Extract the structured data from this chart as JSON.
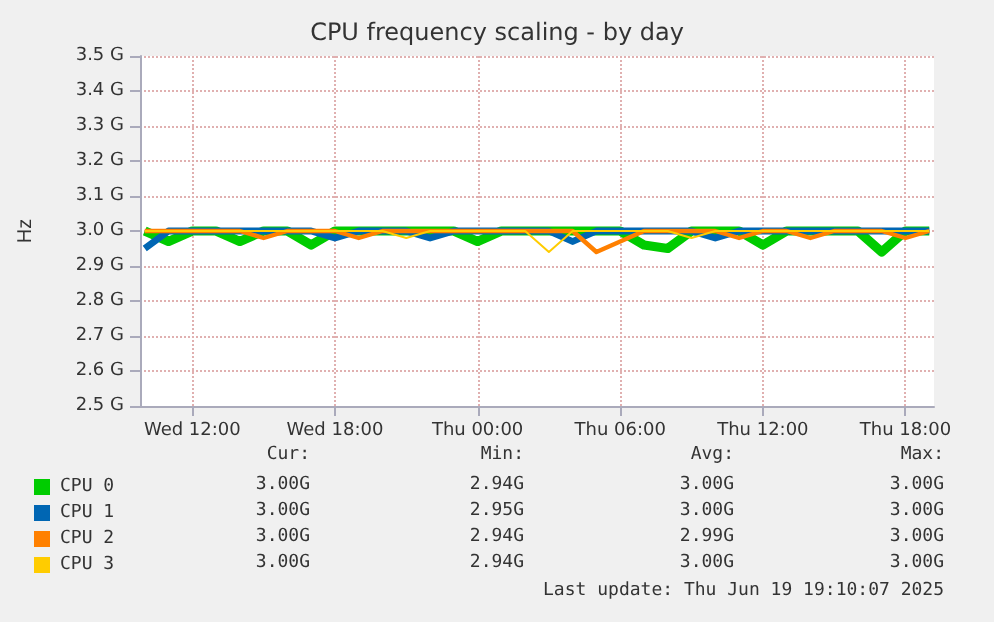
{
  "chart_data": {
    "type": "line",
    "title": "CPU frequency scaling - by day",
    "ylabel": "Hz",
    "x": [
      "2025-06-18T10:00",
      "2025-06-18T11:00",
      "2025-06-18T12:00",
      "2025-06-18T13:00",
      "2025-06-18T14:00",
      "2025-06-18T15:00",
      "2025-06-18T16:00",
      "2025-06-18T17:00",
      "2025-06-18T18:00",
      "2025-06-18T19:00",
      "2025-06-18T20:00",
      "2025-06-18T21:00",
      "2025-06-18T22:00",
      "2025-06-18T23:00",
      "2025-06-19T00:00",
      "2025-06-19T01:00",
      "2025-06-19T02:00",
      "2025-06-19T03:00",
      "2025-06-19T04:00",
      "2025-06-19T05:00",
      "2025-06-19T06:00",
      "2025-06-19T07:00",
      "2025-06-19T08:00",
      "2025-06-19T09:00",
      "2025-06-19T10:00",
      "2025-06-19T11:00",
      "2025-06-19T12:00",
      "2025-06-19T13:00",
      "2025-06-19T14:00",
      "2025-06-19T15:00",
      "2025-06-19T16:00",
      "2025-06-19T17:00",
      "2025-06-19T18:00",
      "2025-06-19T19:00"
    ],
    "series": [
      {
        "name": "CPU 0",
        "color": "#00cc00",
        "values": [
          3.0,
          2.97,
          3.0,
          3.0,
          2.97,
          3.0,
          3.0,
          2.96,
          3.0,
          3.0,
          3.0,
          3.0,
          3.0,
          3.0,
          2.97,
          3.0,
          3.0,
          3.0,
          3.0,
          3.0,
          3.0,
          2.96,
          2.95,
          3.0,
          3.0,
          3.0,
          2.96,
          3.0,
          3.0,
          3.0,
          3.0,
          2.94,
          3.0,
          3.0
        ]
      },
      {
        "name": "CPU 1",
        "color": "#0066b3",
        "values": [
          2.95,
          3.0,
          3.0,
          3.0,
          3.0,
          3.0,
          3.0,
          3.0,
          2.98,
          3.0,
          3.0,
          3.0,
          2.98,
          3.0,
          3.0,
          3.0,
          3.0,
          3.0,
          2.97,
          3.0,
          3.0,
          3.0,
          3.0,
          3.0,
          2.98,
          3.0,
          3.0,
          3.0,
          3.0,
          3.0,
          3.0,
          3.0,
          3.0,
          3.0
        ]
      },
      {
        "name": "CPU 2",
        "color": "#ff8000",
        "values": [
          3.0,
          3.0,
          3.0,
          3.0,
          3.0,
          2.98,
          3.0,
          3.0,
          3.0,
          2.98,
          3.0,
          3.0,
          3.0,
          3.0,
          3.0,
          3.0,
          3.0,
          3.0,
          3.0,
          2.94,
          2.97,
          3.0,
          3.0,
          3.0,
          3.0,
          2.98,
          3.0,
          3.0,
          2.98,
          3.0,
          3.0,
          3.0,
          2.98,
          3.0
        ]
      },
      {
        "name": "CPU 3",
        "color": "#ffcc00",
        "values": [
          3.0,
          3.0,
          3.0,
          3.0,
          3.0,
          3.0,
          3.0,
          3.0,
          3.0,
          3.0,
          3.0,
          2.98,
          3.0,
          3.0,
          3.0,
          3.0,
          3.0,
          2.94,
          3.0,
          3.0,
          3.0,
          3.0,
          3.0,
          2.98,
          3.0,
          3.0,
          3.0,
          3.0,
          3.0,
          3.0,
          3.0,
          3.0,
          3.0,
          3.0
        ]
      }
    ],
    "xlim": [
      "2025-06-18T09:48",
      "2025-06-19T19:12"
    ],
    "xticks": [
      {
        "value": "2025-06-18T12:00",
        "label": "Wed 12:00"
      },
      {
        "value": "2025-06-18T18:00",
        "label": "Wed 18:00"
      },
      {
        "value": "2025-06-19T00:00",
        "label": "Thu 00:00"
      },
      {
        "value": "2025-06-19T06:00",
        "label": "Thu 06:00"
      },
      {
        "value": "2025-06-19T12:00",
        "label": "Thu 12:00"
      },
      {
        "value": "2025-06-19T18:00",
        "label": "Thu 18:00"
      }
    ],
    "ylim": [
      2.5,
      3.5
    ],
    "yticks": [
      {
        "value": 2.5,
        "label": "2.5 G"
      },
      {
        "value": 2.6,
        "label": "2.6 G"
      },
      {
        "value": 2.7,
        "label": "2.7 G"
      },
      {
        "value": 2.8,
        "label": "2.8 G"
      },
      {
        "value": 2.9,
        "label": "2.9 G"
      },
      {
        "value": 3.0,
        "label": "3.0 G"
      },
      {
        "value": 3.1,
        "label": "3.1 G"
      },
      {
        "value": 3.2,
        "label": "3.2 G"
      },
      {
        "value": 3.3,
        "label": "3.3 G"
      },
      {
        "value": 3.4,
        "label": "3.4 G"
      },
      {
        "value": 3.5,
        "label": "3.5 G"
      }
    ],
    "grid": true,
    "legend": "bottom left",
    "marker": "none",
    "line_style": "solid",
    "annotations": [
      "Cur:",
      "Min:",
      "Avg:",
      "Max:",
      "3.00G",
      "2.94G",
      "3.00G",
      "3.00G",
      "3.00G",
      "2.95G",
      "3.00G",
      "3.00G",
      "3.00G",
      "2.94G",
      "2.99G",
      "3.00G",
      "3.00G",
      "2.94G",
      "3.00G",
      "3.00G",
      "Last update: Thu Jun 19 19:10:07 2025"
    ]
  }
}
